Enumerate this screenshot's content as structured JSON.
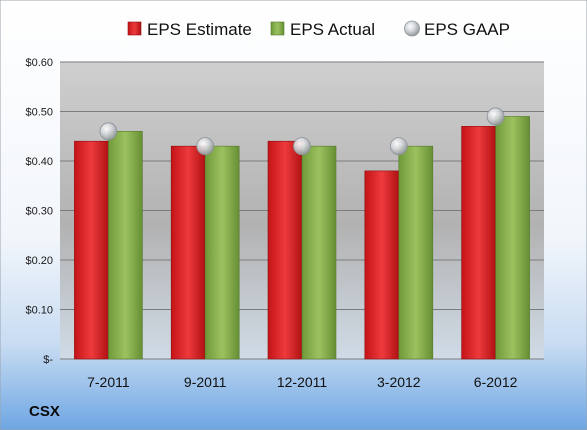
{
  "chart_data": {
    "type": "bar",
    "subtitle": "CSX",
    "categories": [
      "7-2011",
      "9-2011",
      "12-2011",
      "3-2012",
      "6-2012"
    ],
    "series": [
      {
        "name": "EPS Estimate",
        "type": "bar",
        "values": [
          0.44,
          0.43,
          0.44,
          0.38,
          0.47
        ],
        "color": "#e0262a"
      },
      {
        "name": "EPS Actual",
        "type": "bar",
        "values": [
          0.46,
          0.43,
          0.43,
          0.43,
          0.49
        ],
        "color": "#8cb050"
      },
      {
        "name": "EPS GAAP",
        "type": "scatter",
        "values": [
          0.46,
          0.43,
          0.43,
          0.43,
          0.49
        ],
        "color": "#b8bcc0"
      }
    ],
    "ylim": [
      0,
      0.6
    ],
    "y_ticks": [
      0,
      0.1,
      0.2,
      0.3,
      0.4,
      0.5,
      0.6
    ],
    "y_tick_labels": [
      "$-",
      "$0.10",
      "$0.20",
      "$0.30",
      "$0.40",
      "$0.50",
      "$0.60"
    ],
    "grid": true,
    "legend_position": "top"
  }
}
